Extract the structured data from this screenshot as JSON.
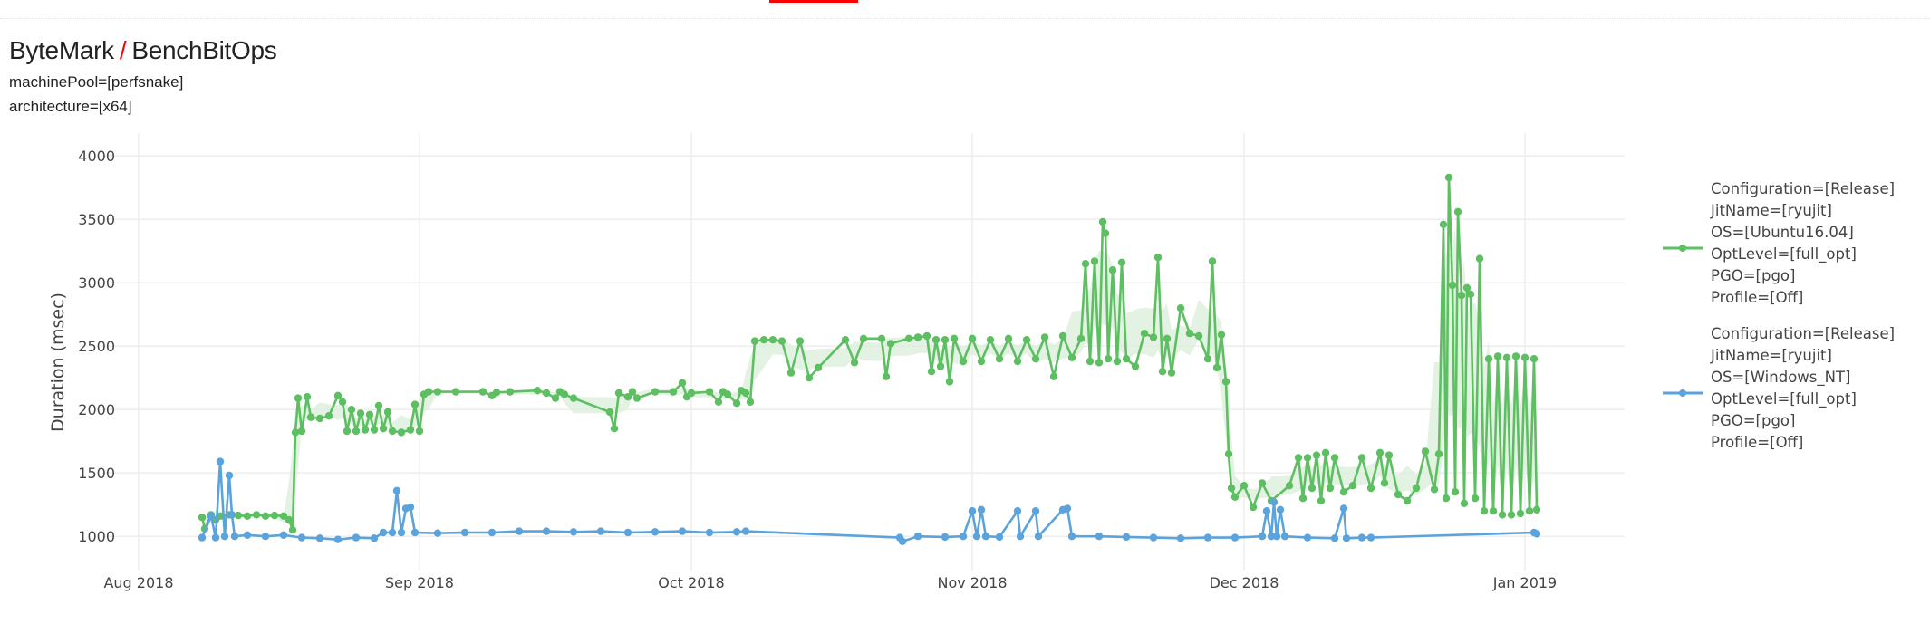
{
  "header": {
    "category": "ByteMark",
    "separator": "/",
    "benchmark": "BenchBitOps"
  },
  "filters": [
    "machinePool=[perfsnake]",
    "architecture=[x64]"
  ],
  "colors": {
    "accent": "#ff0000",
    "green": "#5dbf62",
    "blue": "#5ba3dc",
    "band": "#dcefdc",
    "grid": "#ececec"
  },
  "chart_data": {
    "type": "line",
    "title": "",
    "xlabel": "",
    "ylabel": "Duration (msec)",
    "xlim": [
      "2018-07-28",
      "2019-01-12"
    ],
    "ylim": [
      730,
      4180
    ],
    "grid": true,
    "legend_position": "right",
    "x_ticks": [
      {
        "date": "2018-08-01",
        "label": "Aug 2018"
      },
      {
        "date": "2018-09-01",
        "label": "Sep 2018"
      },
      {
        "date": "2018-10-01",
        "label": "Oct 2018"
      },
      {
        "date": "2018-11-01",
        "label": "Nov 2018"
      },
      {
        "date": "2018-12-01",
        "label": "Dec 2018"
      },
      {
        "date": "2019-01-01",
        "label": "Jan 2019"
      }
    ],
    "y_ticks": [
      1000,
      1500,
      2000,
      2500,
      3000,
      3500,
      4000
    ],
    "series": [
      {
        "name_lines": [
          "Configuration=[Release]",
          "JitName=[ryujit]",
          "OS=[Ubuntu16.04]",
          "OptLevel=[full_opt]",
          "PGO=[pgo]",
          "Profile=[Off]"
        ],
        "color": "#5dbf62",
        "points": [
          [
            "2018-08-08",
            1150
          ],
          [
            "2018-08-08.3",
            1060
          ],
          [
            "2018-08-09",
            1170
          ],
          [
            "2018-08-09.5",
            1130
          ],
          [
            "2018-08-10",
            1160
          ],
          [
            "2018-08-11",
            1170
          ],
          [
            "2018-08-12",
            1165
          ],
          [
            "2018-08-13",
            1160
          ],
          [
            "2018-08-14",
            1170
          ],
          [
            "2018-08-15",
            1160
          ],
          [
            "2018-08-16",
            1165
          ],
          [
            "2018-08-17",
            1160
          ],
          [
            "2018-08-17.6",
            1130
          ],
          [
            "2018-08-18",
            1050
          ],
          [
            "2018-08-18.3",
            1820
          ],
          [
            "2018-08-18.6",
            2090
          ],
          [
            "2018-08-19",
            1830
          ],
          [
            "2018-08-19.6",
            2100
          ],
          [
            "2018-08-20",
            1940
          ],
          [
            "2018-08-21",
            1930
          ],
          [
            "2018-08-22",
            1950
          ],
          [
            "2018-08-23",
            2110
          ],
          [
            "2018-08-23.5",
            2060
          ],
          [
            "2018-08-24",
            1830
          ],
          [
            "2018-08-24.5",
            2000
          ],
          [
            "2018-08-25",
            1830
          ],
          [
            "2018-08-25.5",
            1970
          ],
          [
            "2018-08-26",
            1840
          ],
          [
            "2018-08-26.5",
            1960
          ],
          [
            "2018-08-27",
            1840
          ],
          [
            "2018-08-27.5",
            2030
          ],
          [
            "2018-08-28",
            1850
          ],
          [
            "2018-08-28.5",
            1980
          ],
          [
            "2018-08-29",
            1830
          ],
          [
            "2018-08-30",
            1820
          ],
          [
            "2018-08-31",
            1840
          ],
          [
            "2018-08-31.5",
            2040
          ],
          [
            "2018-09-01",
            1830
          ],
          [
            "2018-09-01.5",
            2120
          ],
          [
            "2018-09-02",
            2140
          ],
          [
            "2018-09-03",
            2140
          ],
          [
            "2018-09-05",
            2140
          ],
          [
            "2018-09-08",
            2140
          ],
          [
            "2018-09-09",
            2110
          ],
          [
            "2018-09-09.5",
            2135
          ],
          [
            "2018-09-11",
            2140
          ],
          [
            "2018-09-14",
            2150
          ],
          [
            "2018-09-15",
            2130
          ],
          [
            "2018-09-16",
            2090
          ],
          [
            "2018-09-16.5",
            2140
          ],
          [
            "2018-09-17",
            2120
          ],
          [
            "2018-09-18",
            2090
          ],
          [
            "2018-09-22",
            1980
          ],
          [
            "2018-09-22.5",
            1850
          ],
          [
            "2018-09-23",
            2130
          ],
          [
            "2018-09-24",
            2100
          ],
          [
            "2018-09-24.5",
            2140
          ],
          [
            "2018-09-25",
            2090
          ],
          [
            "2018-09-27",
            2140
          ],
          [
            "2018-09-29",
            2140
          ],
          [
            "2018-09-30",
            2210
          ],
          [
            "2018-09-30.5",
            2100
          ],
          [
            "2018-10-01",
            2130
          ],
          [
            "2018-10-03",
            2140
          ],
          [
            "2018-10-04",
            2060
          ],
          [
            "2018-10-04.5",
            2140
          ],
          [
            "2018-10-05",
            2120
          ],
          [
            "2018-10-06",
            2050
          ],
          [
            "2018-10-06.5",
            2150
          ],
          [
            "2018-10-07",
            2130
          ],
          [
            "2018-10-07.5",
            2060
          ],
          [
            "2018-10-08",
            2540
          ],
          [
            "2018-10-09",
            2550
          ],
          [
            "2018-10-10",
            2550
          ],
          [
            "2018-10-11",
            2540
          ],
          [
            "2018-10-12",
            2290
          ],
          [
            "2018-10-13",
            2540
          ],
          [
            "2018-10-14",
            2250
          ],
          [
            "2018-10-15",
            2330
          ],
          [
            "2018-10-18",
            2550
          ],
          [
            "2018-10-19",
            2370
          ],
          [
            "2018-10-20",
            2560
          ],
          [
            "2018-10-22",
            2560
          ],
          [
            "2018-10-22.5",
            2260
          ],
          [
            "2018-10-23",
            2520
          ],
          [
            "2018-10-25",
            2560
          ],
          [
            "2018-10-26",
            2570
          ],
          [
            "2018-10-27",
            2580
          ],
          [
            "2018-10-27.5",
            2300
          ],
          [
            "2018-10-28",
            2550
          ],
          [
            "2018-10-28.5",
            2340
          ],
          [
            "2018-10-29",
            2550
          ],
          [
            "2018-10-29.5",
            2220
          ],
          [
            "2018-10-30",
            2560
          ],
          [
            "2018-10-31",
            2380
          ],
          [
            "2018-11-01",
            2560
          ],
          [
            "2018-11-02",
            2380
          ],
          [
            "2018-11-03",
            2550
          ],
          [
            "2018-11-04",
            2400
          ],
          [
            "2018-11-05",
            2560
          ],
          [
            "2018-11-06",
            2380
          ],
          [
            "2018-11-07",
            2550
          ],
          [
            "2018-11-08",
            2400
          ],
          [
            "2018-11-09",
            2570
          ],
          [
            "2018-11-10",
            2260
          ],
          [
            "2018-11-11",
            2580
          ],
          [
            "2018-11-12",
            2410
          ],
          [
            "2018-11-13",
            2560
          ],
          [
            "2018-11-13.5",
            3150
          ],
          [
            "2018-11-14",
            2380
          ],
          [
            "2018-11-14.5",
            3170
          ],
          [
            "2018-11-15",
            2370
          ],
          [
            "2018-11-15.4",
            3480
          ],
          [
            "2018-11-15.7",
            3390
          ],
          [
            "2018-11-16",
            2400
          ],
          [
            "2018-11-16.5",
            3100
          ],
          [
            "2018-11-17",
            2380
          ],
          [
            "2018-11-17.5",
            3160
          ],
          [
            "2018-11-18",
            2400
          ],
          [
            "2018-11-19",
            2340
          ],
          [
            "2018-11-20",
            2600
          ],
          [
            "2018-11-21",
            2570
          ],
          [
            "2018-11-21.5",
            3200
          ],
          [
            "2018-11-22",
            2300
          ],
          [
            "2018-11-22.5",
            2560
          ],
          [
            "2018-11-23",
            2290
          ],
          [
            "2018-11-24",
            2800
          ],
          [
            "2018-11-25",
            2600
          ],
          [
            "2018-11-26",
            2580
          ],
          [
            "2018-11-27",
            2400
          ],
          [
            "2018-11-27.5",
            3170
          ],
          [
            "2018-11-28",
            2330
          ],
          [
            "2018-11-28.5",
            2590
          ],
          [
            "2018-11-29",
            2220
          ],
          [
            "2018-11-29.3",
            1650
          ],
          [
            "2018-11-29.6",
            1380
          ],
          [
            "2018-11-30",
            1310
          ],
          [
            "2018-12-01",
            1400
          ],
          [
            "2018-12-02",
            1230
          ],
          [
            "2018-12-03",
            1420
          ],
          [
            "2018-12-04",
            1280
          ],
          [
            "2018-12-06",
            1400
          ],
          [
            "2018-12-07",
            1620
          ],
          [
            "2018-12-07.5",
            1300
          ],
          [
            "2018-12-08",
            1620
          ],
          [
            "2018-12-08.5",
            1380
          ],
          [
            "2018-12-09",
            1640
          ],
          [
            "2018-12-09.5",
            1280
          ],
          [
            "2018-12-10",
            1660
          ],
          [
            "2018-12-10.5",
            1380
          ],
          [
            "2018-12-11",
            1620
          ],
          [
            "2018-12-12",
            1350
          ],
          [
            "2018-12-13",
            1400
          ],
          [
            "2018-12-14",
            1620
          ],
          [
            "2018-12-15",
            1380
          ],
          [
            "2018-12-16",
            1660
          ],
          [
            "2018-12-16.5",
            1420
          ],
          [
            "2018-12-17",
            1640
          ],
          [
            "2018-12-18",
            1330
          ],
          [
            "2018-12-19",
            1280
          ],
          [
            "2018-12-20",
            1380
          ],
          [
            "2018-12-21",
            1670
          ],
          [
            "2018-12-22",
            1370
          ],
          [
            "2018-12-22.5",
            1650
          ],
          [
            "2018-12-23",
            3460
          ],
          [
            "2018-12-23.3",
            1300
          ],
          [
            "2018-12-23.6",
            3830
          ],
          [
            "2018-12-24",
            2980
          ],
          [
            "2018-12-24.3",
            1350
          ],
          [
            "2018-12-24.6",
            3560
          ],
          [
            "2018-12-25",
            2900
          ],
          [
            "2018-12-25.3",
            1260
          ],
          [
            "2018-12-25.6",
            2960
          ],
          [
            "2018-12-26",
            2910
          ],
          [
            "2018-12-26.5",
            1300
          ],
          [
            "2018-12-27",
            3190
          ],
          [
            "2018-12-27.5",
            1200
          ],
          [
            "2018-12-28",
            2400
          ],
          [
            "2018-12-28.5",
            1200
          ],
          [
            "2018-12-29",
            2420
          ],
          [
            "2018-12-29.5",
            1170
          ],
          [
            "2018-12-30",
            2410
          ],
          [
            "2018-12-30.5",
            1170
          ],
          [
            "2018-12-31",
            2420
          ],
          [
            "2018-12-31.5",
            1180
          ],
          [
            "2019-01-01",
            2410
          ],
          [
            "2019-01-01.5",
            1200
          ],
          [
            "2019-01-02",
            2400
          ],
          [
            "2019-01-02.3",
            1210
          ]
        ]
      },
      {
        "name_lines": [
          "Configuration=[Release]",
          "JitName=[ryujit]",
          "OS=[Windows_NT]",
          "OptLevel=[full_opt]",
          "PGO=[pgo]",
          "Profile=[Off]"
        ],
        "color": "#5ba3dc",
        "points": [
          [
            "2018-08-08",
            990
          ],
          [
            "2018-08-09",
            1160
          ],
          [
            "2018-08-09.5",
            990
          ],
          [
            "2018-08-10",
            1590
          ],
          [
            "2018-08-10.5",
            1000
          ],
          [
            "2018-08-11",
            1480
          ],
          [
            "2018-08-11.3",
            1170
          ],
          [
            "2018-08-11.6",
            1000
          ],
          [
            "2018-08-13",
            1010
          ],
          [
            "2018-08-15",
            1000
          ],
          [
            "2018-08-17",
            1010
          ],
          [
            "2018-08-19",
            990
          ],
          [
            "2018-08-21",
            985
          ],
          [
            "2018-08-23",
            975
          ],
          [
            "2018-08-25",
            990
          ],
          [
            "2018-08-27",
            985
          ],
          [
            "2018-08-28",
            1030
          ],
          [
            "2018-08-29",
            1030
          ],
          [
            "2018-08-29.5",
            1360
          ],
          [
            "2018-08-30",
            1030
          ],
          [
            "2018-08-30.5",
            1220
          ],
          [
            "2018-08-31",
            1230
          ],
          [
            "2018-08-31.5",
            1030
          ],
          [
            "2018-09-03",
            1025
          ],
          [
            "2018-09-06",
            1030
          ],
          [
            "2018-09-09",
            1030
          ],
          [
            "2018-09-12",
            1040
          ],
          [
            "2018-09-15",
            1040
          ],
          [
            "2018-09-18",
            1035
          ],
          [
            "2018-09-21",
            1040
          ],
          [
            "2018-09-24",
            1030
          ],
          [
            "2018-09-27",
            1035
          ],
          [
            "2018-09-30",
            1040
          ],
          [
            "2018-10-03",
            1030
          ],
          [
            "2018-10-06",
            1035
          ],
          [
            "2018-10-07",
            1040
          ],
          [
            "2018-10-24",
            990
          ],
          [
            "2018-10-24.3",
            960
          ],
          [
            "2018-10-26",
            1000
          ],
          [
            "2018-10-29",
            995
          ],
          [
            "2018-10-31",
            1000
          ],
          [
            "2018-11-01",
            1200
          ],
          [
            "2018-11-01.5",
            1000
          ],
          [
            "2018-11-02",
            1210
          ],
          [
            "2018-11-02.5",
            1000
          ],
          [
            "2018-11-04",
            995
          ],
          [
            "2018-11-06",
            1200
          ],
          [
            "2018-11-06.3",
            1000
          ],
          [
            "2018-11-08",
            1200
          ],
          [
            "2018-11-08.3",
            1000
          ],
          [
            "2018-11-11",
            1210
          ],
          [
            "2018-11-11.5",
            1220
          ],
          [
            "2018-11-12",
            1000
          ],
          [
            "2018-11-15",
            1000
          ],
          [
            "2018-11-18",
            995
          ],
          [
            "2018-11-21",
            990
          ],
          [
            "2018-11-24",
            985
          ],
          [
            "2018-11-27",
            990
          ],
          [
            "2018-11-30",
            990
          ],
          [
            "2018-12-03",
            1000
          ],
          [
            "2018-12-03.5",
            1200
          ],
          [
            "2018-12-04",
            1000
          ],
          [
            "2018-12-04.3",
            1270
          ],
          [
            "2018-12-04.6",
            1000
          ],
          [
            "2018-12-05",
            1210
          ],
          [
            "2018-12-05.5",
            1000
          ],
          [
            "2018-12-08",
            990
          ],
          [
            "2018-12-11",
            985
          ],
          [
            "2018-12-12",
            1220
          ],
          [
            "2018-12-12.3",
            985
          ],
          [
            "2018-12-14",
            990
          ],
          [
            "2018-12-15",
            990
          ],
          [
            "2019-01-02",
            1030
          ],
          [
            "2019-01-02.3",
            1020
          ]
        ]
      }
    ]
  }
}
